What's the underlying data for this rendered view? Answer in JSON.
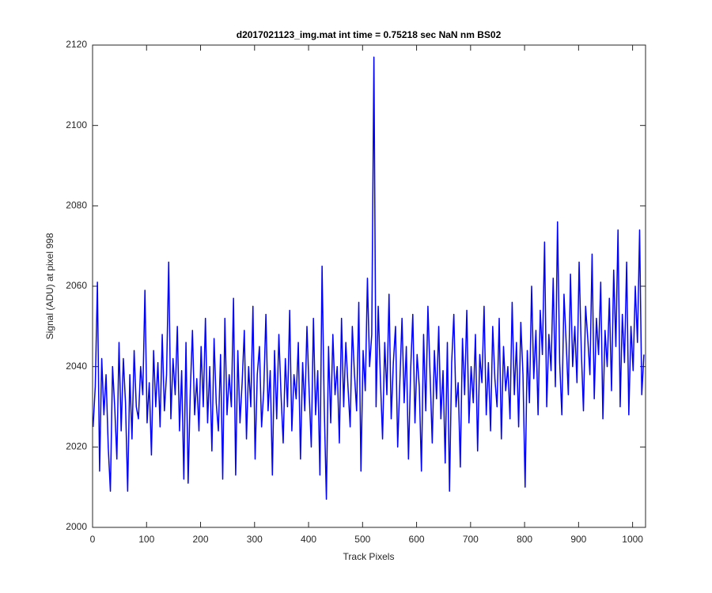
{
  "chart_data": {
    "type": "line",
    "title": "d2017021123_img.mat int time = 0.75218 sec  NaN nm BS02",
    "xlabel": "Track Pixels",
    "ylabel": "Signal (ADU) at pixel 998",
    "xlim": [
      0,
      1024
    ],
    "xticks": [
      0,
      100,
      200,
      300,
      400,
      500,
      600,
      700,
      800,
      900,
      1000
    ],
    "ylim": [
      2000,
      2120
    ],
    "yticks": [
      2000,
      2020,
      2040,
      2060,
      2080,
      2100,
      2120
    ],
    "grid": false,
    "x": [
      1,
      5,
      9,
      13,
      17,
      21,
      25,
      29,
      33,
      37,
      41,
      45,
      49,
      53,
      57,
      61,
      65,
      69,
      73,
      77,
      81,
      85,
      89,
      93,
      97,
      101,
      105,
      109,
      113,
      117,
      121,
      125,
      129,
      133,
      137,
      141,
      145,
      149,
      153,
      157,
      161,
      165,
      169,
      173,
      177,
      181,
      185,
      189,
      193,
      197,
      201,
      205,
      209,
      213,
      217,
      221,
      225,
      229,
      233,
      237,
      241,
      245,
      249,
      253,
      257,
      261,
      265,
      269,
      273,
      277,
      281,
      285,
      289,
      293,
      297,
      301,
      305,
      309,
      313,
      317,
      321,
      325,
      329,
      333,
      337,
      341,
      345,
      349,
      353,
      357,
      361,
      365,
      369,
      373,
      377,
      381,
      385,
      389,
      393,
      397,
      401,
      405,
      409,
      413,
      417,
      421,
      425,
      429,
      433,
      437,
      441,
      445,
      449,
      453,
      457,
      461,
      465,
      469,
      473,
      477,
      481,
      485,
      489,
      493,
      497,
      501,
      505,
      509,
      513,
      517,
      521,
      525,
      529,
      533,
      537,
      541,
      545,
      549,
      553,
      557,
      561,
      565,
      569,
      573,
      577,
      581,
      585,
      589,
      593,
      597,
      601,
      605,
      609,
      613,
      617,
      621,
      625,
      629,
      633,
      637,
      641,
      645,
      649,
      653,
      657,
      661,
      665,
      669,
      673,
      677,
      681,
      685,
      689,
      693,
      697,
      701,
      705,
      709,
      713,
      717,
      721,
      725,
      729,
      733,
      737,
      741,
      745,
      749,
      753,
      757,
      761,
      765,
      769,
      773,
      777,
      781,
      785,
      789,
      793,
      797,
      801,
      805,
      809,
      813,
      817,
      821,
      825,
      829,
      833,
      837,
      841,
      845,
      849,
      853,
      857,
      861,
      865,
      869,
      873,
      877,
      881,
      885,
      889,
      893,
      897,
      901,
      905,
      909,
      913,
      917,
      921,
      925,
      929,
      933,
      937,
      941,
      945,
      949,
      953,
      957,
      961,
      965,
      969,
      973,
      977,
      981,
      985,
      989,
      993,
      997,
      1001,
      1005,
      1009,
      1013,
      1017,
      1021
    ],
    "series": [
      {
        "color": "#0000ff",
        "values": [
          2025,
          2035,
          2061,
          2014,
          2042,
          2028,
          2038,
          2020,
          2009,
          2040,
          2030,
          2017,
          2046,
          2024,
          2042,
          2031,
          2009,
          2038,
          2022,
          2044,
          2030,
          2027,
          2040,
          2033,
          2059,
          2026,
          2036,
          2018,
          2044,
          2030,
          2041,
          2025,
          2048,
          2029,
          2038,
          2066,
          2027,
          2042,
          2033,
          2050,
          2024,
          2039,
          2012,
          2046,
          2011,
          2034,
          2049,
          2028,
          2037,
          2024,
          2045,
          2030,
          2052,
          2026,
          2040,
          2019,
          2047,
          2031,
          2024,
          2043,
          2012,
          2052,
          2028,
          2038,
          2030,
          2057,
          2013,
          2044,
          2026,
          2036,
          2049,
          2022,
          2040,
          2030,
          2055,
          2017,
          2038,
          2045,
          2025,
          2034,
          2053,
          2029,
          2039,
          2013,
          2044,
          2027,
          2048,
          2033,
          2021,
          2042,
          2030,
          2054,
          2024,
          2038,
          2032,
          2046,
          2017,
          2041,
          2029,
          2050,
          2034,
          2020,
          2052,
          2028,
          2039,
          2013,
          2065,
          2030,
          2007,
          2045,
          2026,
          2048,
          2033,
          2040,
          2021,
          2052,
          2030,
          2046,
          2035,
          2025,
          2050,
          2038,
          2029,
          2056,
          2014,
          2044,
          2034,
          2062,
          2040,
          2048,
          2117,
          2030,
          2055,
          2037,
          2022,
          2046,
          2033,
          2058,
          2027,
          2041,
          2050,
          2020,
          2036,
          2052,
          2031,
          2045,
          2017,
          2039,
          2053,
          2026,
          2043,
          2035,
          2014,
          2048,
          2029,
          2055,
          2038,
          2021,
          2044,
          2032,
          2050,
          2027,
          2039,
          2016,
          2046,
          2009,
          2041,
          2053,
          2030,
          2036,
          2015,
          2047,
          2033,
          2054,
          2026,
          2040,
          2031,
          2048,
          2019,
          2043,
          2036,
          2055,
          2028,
          2041,
          2024,
          2050,
          2037,
          2030,
          2052,
          2022,
          2045,
          2034,
          2040,
          2027,
          2056,
          2033,
          2046,
          2025,
          2051,
          2038,
          2010,
          2044,
          2031,
          2060,
          2037,
          2049,
          2028,
          2054,
          2043,
          2071,
          2030,
          2048,
          2039,
          2062,
          2035,
          2076,
          2041,
          2028,
          2058,
          2046,
          2033,
          2063,
          2040,
          2050,
          2036,
          2066,
          2044,
          2029,
          2055,
          2047,
          2038,
          2068,
          2032,
          2052,
          2043,
          2061,
          2027,
          2049,
          2040,
          2057,
          2034,
          2064,
          2045,
          2074,
          2030,
          2053,
          2041,
          2066,
          2028,
          2050,
          2039,
          2060,
          2046,
          2074,
          2033,
          2043
        ]
      }
    ]
  }
}
